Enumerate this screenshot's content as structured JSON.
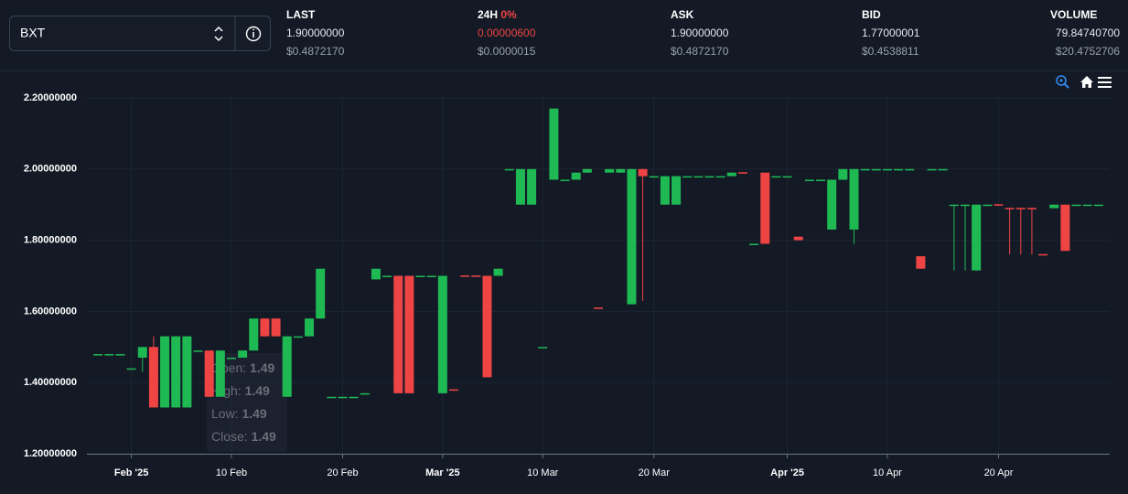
{
  "header": {
    "selector": "BXT",
    "stats": [
      {
        "label": "LAST",
        "value": "1.90000000",
        "sub": "$0.4872170"
      },
      {
        "label": "24H",
        "change": "0%",
        "value": "0.00000600",
        "sub": "$0.0000015"
      },
      {
        "label": "ASK",
        "value": "1.90000000",
        "sub": "$0.4872170"
      },
      {
        "label": "BID",
        "value": "1.77000001",
        "sub": "$0.4538811"
      },
      {
        "label": "VOLUME",
        "value": "79.84740700",
        "sub": "$20.4752706"
      }
    ]
  },
  "chart_data": {
    "type": "candlestick",
    "up_color": "#1fb954",
    "down_color": "#ef4444",
    "grid": true,
    "ylim": [
      1.2,
      2.2
    ],
    "yticks": [
      {
        "value": 1.2,
        "label": "1.20000000"
      },
      {
        "value": 1.4,
        "label": "1.40000000"
      },
      {
        "value": 1.6,
        "label": "1.60000000"
      },
      {
        "value": 1.8,
        "label": "1.80000000"
      },
      {
        "value": 2.0,
        "label": "2.00000000"
      },
      {
        "value": 2.2,
        "label": "2.20000000"
      }
    ],
    "xlim": [
      "2025-01-28",
      "2025-04-30"
    ],
    "xticks": [
      {
        "value": "2025-02-01",
        "label": "Feb '25"
      },
      {
        "value": "2025-02-10",
        "label": "10 Feb"
      },
      {
        "value": "2025-02-20",
        "label": "20 Feb"
      },
      {
        "value": "2025-03-01",
        "label": "Mar '25"
      },
      {
        "value": "2025-03-10",
        "label": "10 Mar"
      },
      {
        "value": "2025-03-20",
        "label": "20 Mar"
      },
      {
        "value": "2025-04-01",
        "label": "Apr '25"
      },
      {
        "value": "2025-04-10",
        "label": "10 Apr"
      },
      {
        "value": "2025-04-20",
        "label": "20 Apr"
      }
    ],
    "tooltip": [
      {
        "label": "Open:",
        "value": 1.49
      },
      {
        "label": "High:",
        "value": 1.49
      },
      {
        "label": "Low:",
        "value": 1.49
      },
      {
        "label": "Close:",
        "value": 1.49
      }
    ],
    "x": [
      "2025-01-29",
      "2025-01-30",
      "2025-01-31",
      "2025-02-01",
      "2025-02-02",
      "2025-02-03",
      "2025-02-04",
      "2025-02-05",
      "2025-02-06",
      "2025-02-07",
      "2025-02-08",
      "2025-02-09",
      "2025-02-10",
      "2025-02-11",
      "2025-02-12",
      "2025-02-13",
      "2025-02-14",
      "2025-02-15",
      "2025-02-16",
      "2025-02-17",
      "2025-02-18",
      "2025-02-19",
      "2025-02-20",
      "2025-02-21",
      "2025-02-22",
      "2025-02-23",
      "2025-02-24",
      "2025-02-25",
      "2025-02-26",
      "2025-02-27",
      "2025-02-28",
      "2025-03-01",
      "2025-03-02",
      "2025-03-03",
      "2025-03-04",
      "2025-03-05",
      "2025-03-06",
      "2025-03-07",
      "2025-03-08",
      "2025-03-09",
      "2025-03-10",
      "2025-03-11",
      "2025-03-12",
      "2025-03-13",
      "2025-03-14",
      "2025-03-15",
      "2025-03-16",
      "2025-03-17",
      "2025-03-18",
      "2025-03-19",
      "2025-03-20",
      "2025-03-21",
      "2025-03-22",
      "2025-03-23",
      "2025-03-24",
      "2025-03-25",
      "2025-03-26",
      "2025-03-27",
      "2025-03-28",
      "2025-03-29",
      "2025-03-30",
      "2025-03-31",
      "2025-04-01",
      "2025-04-02",
      "2025-04-03",
      "2025-04-04",
      "2025-04-05",
      "2025-04-06",
      "2025-04-07",
      "2025-04-08",
      "2025-04-09",
      "2025-04-10",
      "2025-04-11",
      "2025-04-12",
      "2025-04-13",
      "2025-04-14",
      "2025-04-15",
      "2025-04-16",
      "2025-04-17",
      "2025-04-18",
      "2025-04-19",
      "2025-04-20",
      "2025-04-21",
      "2025-04-22",
      "2025-04-23",
      "2025-04-24",
      "2025-04-25",
      "2025-04-26",
      "2025-04-27",
      "2025-04-28",
      "2025-04-29"
    ],
    "ohlc": [
      [
        1.48,
        1.48,
        1.48,
        1.48
      ],
      [
        1.48,
        1.48,
        1.48,
        1.48
      ],
      [
        1.48,
        1.48,
        1.48,
        1.48
      ],
      [
        1.44,
        1.44,
        1.44,
        1.44
      ],
      [
        1.47,
        1.5,
        1.43,
        1.5
      ],
      [
        1.5,
        1.53,
        1.33,
        1.33
      ],
      [
        1.33,
        1.53,
        1.33,
        1.53
      ],
      [
        1.33,
        1.53,
        1.33,
        1.53
      ],
      [
        1.33,
        1.53,
        1.33,
        1.53
      ],
      [
        1.49,
        1.49,
        1.49,
        1.49
      ],
      [
        1.49,
        1.49,
        1.36,
        1.36
      ],
      [
        1.36,
        1.49,
        1.36,
        1.49
      ],
      [
        1.47,
        1.47,
        1.47,
        1.47
      ],
      [
        1.47,
        1.49,
        1.47,
        1.49
      ],
      [
        1.49,
        1.58,
        1.49,
        1.58
      ],
      [
        1.58,
        1.58,
        1.53,
        1.53
      ],
      [
        1.58,
        1.58,
        1.53,
        1.53
      ],
      [
        1.36,
        1.53,
        1.36,
        1.53
      ],
      [
        1.53,
        1.53,
        1.53,
        1.53
      ],
      [
        1.53,
        1.58,
        1.53,
        1.58
      ],
      [
        1.58,
        1.72,
        1.58,
        1.72
      ],
      [
        1.36,
        1.36,
        1.36,
        1.36
      ],
      [
        1.36,
        1.36,
        1.36,
        1.36
      ],
      [
        1.36,
        1.36,
        1.36,
        1.36
      ],
      [
        1.37,
        1.37,
        1.37,
        1.37
      ],
      [
        1.69,
        1.72,
        1.69,
        1.72
      ],
      [
        1.7,
        1.7,
        1.7,
        1.7
      ],
      [
        1.7,
        1.7,
        1.37,
        1.37
      ],
      [
        1.7,
        1.7,
        1.37,
        1.37
      ],
      [
        1.7,
        1.7,
        1.7,
        1.7
      ],
      [
        1.7,
        1.7,
        1.7,
        1.7
      ],
      [
        1.37,
        1.7,
        1.37,
        1.7
      ],
      [
        1.381,
        1.381,
        1.38,
        1.38
      ],
      [
        1.701,
        1.701,
        1.7,
        1.7
      ],
      [
        1.701,
        1.701,
        1.7,
        1.7
      ],
      [
        1.7,
        1.7,
        1.415,
        1.415
      ],
      [
        1.7,
        1.72,
        1.7,
        1.72
      ],
      [
        2,
        2,
        2,
        2
      ],
      [
        1.9,
        2,
        1.9,
        2
      ],
      [
        1.9,
        2,
        1.9,
        2
      ],
      [
        1.5,
        1.5,
        1.5,
        1.5
      ],
      [
        1.97,
        2.17,
        1.97,
        2.17
      ],
      [
        1.97,
        1.97,
        1.97,
        1.97
      ],
      [
        1.97,
        1.99,
        1.97,
        1.99
      ],
      [
        1.99,
        2,
        1.99,
        2
      ],
      [
        1.611,
        1.611,
        1.61,
        1.61
      ],
      [
        1.99,
        2,
        1.99,
        2
      ],
      [
        1.99,
        2,
        1.99,
        2
      ],
      [
        1.62,
        2,
        1.62,
        2
      ],
      [
        2,
        2,
        1.63,
        1.98
      ],
      [
        1.98,
        1.98,
        1.98,
        1.98
      ],
      [
        1.9,
        1.98,
        1.9,
        1.98
      ],
      [
        1.9,
        1.98,
        1.9,
        1.98
      ],
      [
        1.98,
        1.98,
        1.98,
        1.98
      ],
      [
        1.98,
        1.98,
        1.98,
        1.98
      ],
      [
        1.98,
        1.98,
        1.98,
        1.98
      ],
      [
        1.98,
        1.98,
        1.98,
        1.98
      ],
      [
        1.98,
        1.99,
        1.98,
        1.99
      ],
      [
        1.991,
        1.991,
        1.99,
        1.99
      ],
      [
        1.79,
        1.79,
        1.79,
        1.79
      ],
      [
        1.99,
        1.99,
        1.79,
        1.79
      ],
      [
        1.98,
        1.98,
        1.98,
        1.98
      ],
      [
        1.98,
        1.98,
        1.98,
        1.98
      ],
      [
        1.81,
        1.81,
        1.8,
        1.8
      ],
      [
        1.97,
        1.97,
        1.97,
        1.97
      ],
      [
        1.97,
        1.97,
        1.97,
        1.97
      ],
      [
        1.83,
        1.97,
        1.83,
        1.97
      ],
      [
        1.97,
        2,
        1.97,
        2
      ],
      [
        1.83,
        2,
        1.79,
        2
      ],
      [
        2,
        2,
        2,
        2
      ],
      [
        2,
        2,
        2,
        2
      ],
      [
        2,
        2,
        2,
        2
      ],
      [
        2,
        2,
        2,
        2
      ],
      [
        2,
        2,
        2,
        2
      ],
      [
        1.755,
        1.755,
        1.72,
        1.72
      ],
      [
        2,
        2,
        2,
        2
      ],
      [
        2,
        2,
        2,
        2
      ],
      [
        1.9,
        1.9,
        1.715,
        1.9
      ],
      [
        1.9,
        1.9,
        1.715,
        1.9
      ],
      [
        1.715,
        1.9,
        1.715,
        1.9
      ],
      [
        1.9,
        1.9,
        1.9,
        1.9
      ],
      [
        1.901,
        1.901,
        1.9,
        1.9
      ],
      [
        1.891,
        1.891,
        1.76,
        1.89
      ],
      [
        1.891,
        1.891,
        1.76,
        1.89
      ],
      [
        1.891,
        1.891,
        1.76,
        1.89
      ],
      [
        1.761,
        1.761,
        1.76,
        1.76
      ],
      [
        1.89,
        1.9,
        1.89,
        1.9
      ],
      [
        1.9,
        1.9,
        1.77,
        1.77
      ],
      [
        1.9,
        1.9,
        1.9,
        1.9
      ],
      [
        1.9,
        1.9,
        1.9,
        1.9
      ],
      [
        1.9,
        1.9,
        1.9,
        1.9
      ]
    ]
  }
}
